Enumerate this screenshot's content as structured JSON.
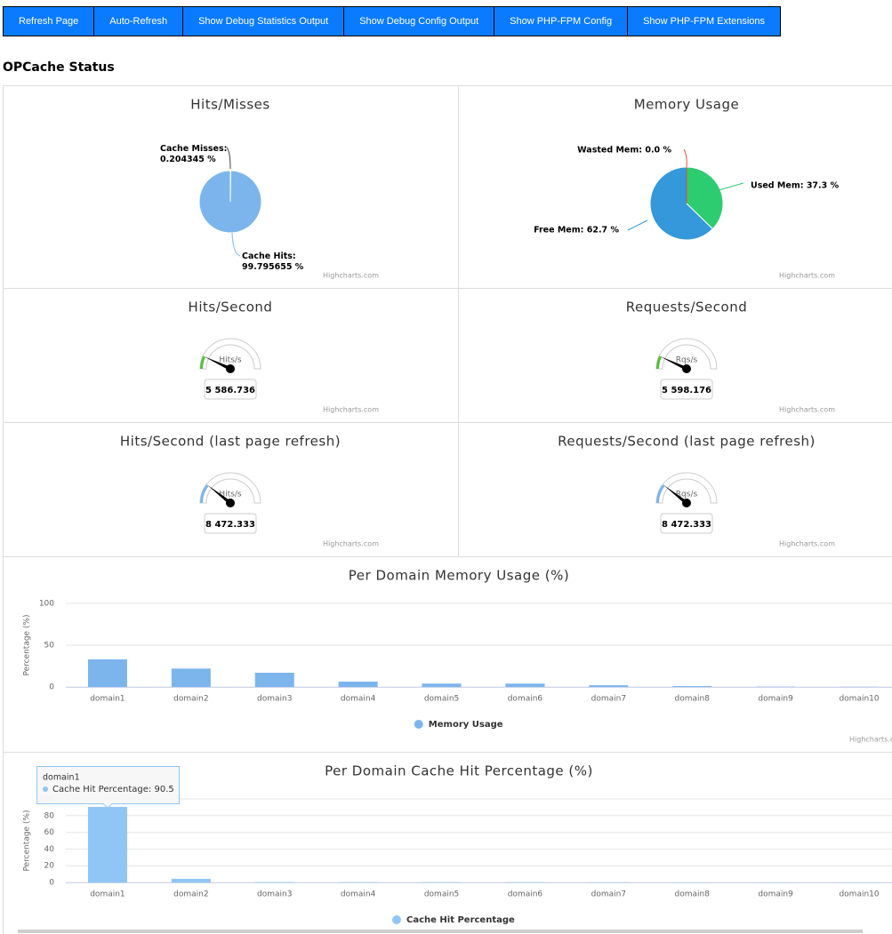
{
  "buttons": [
    "Refresh Page",
    "Auto-Refresh",
    "Show Debug Statistics Output",
    "Show Debug Config Output",
    "Show PHP-FPM Config",
    "Show PHP-FPM Extensions"
  ],
  "heading": "OPCache Status",
  "chart_data": [
    {
      "type": "pie",
      "title": "Hits/Misses",
      "credits": "Highcharts.com",
      "categories": [
        "Cache Misses",
        "Cache Hits"
      ],
      "values": [
        0.204345,
        99.795655
      ],
      "value_labels": [
        "Cache Misses: 0.204345 %",
        "Cache Hits: 99.795655 %"
      ],
      "colors": [
        "#434348",
        "#7cb5ec"
      ]
    },
    {
      "type": "pie",
      "title": "Memory Usage",
      "credits": "Highcharts.com",
      "categories": [
        "Used Mem",
        "Free Mem",
        "Wasted Mem"
      ],
      "values": [
        37.3,
        62.7,
        0
      ],
      "value_labels": [
        "Used Mem: 37.3 %",
        "Free Mem: 62.7 %",
        "Wasted Mem: 0.0 %"
      ],
      "colors": [
        "#2ecc71",
        "#3498db",
        "#e74c3c"
      ]
    },
    {
      "type": "gauge",
      "title": "Hits/Second",
      "credits": "Highcharts.com",
      "unit": "Hits/s",
      "value": 5586.736,
      "value_label": "5 586.736",
      "ylim": [
        0,
        40000
      ],
      "color": "#55bf3b"
    },
    {
      "type": "gauge",
      "title": "Requests/Second",
      "credits": "Highcharts.com",
      "unit": "Rqs/s",
      "value": 5598.176,
      "value_label": "5 598.176",
      "ylim": [
        0,
        40000
      ],
      "color": "#55bf3b"
    },
    {
      "type": "gauge",
      "title": "Hits/Second (last page refresh)",
      "credits": "Highcharts.com",
      "unit": "Hits/s",
      "value": 8472.333,
      "value_label": "8 472.333",
      "ylim": [
        0,
        40000
      ],
      "color": "#7cb5ec"
    },
    {
      "type": "gauge",
      "title": "Requests/Second (last page refresh)",
      "credits": "Highcharts.com",
      "unit": "Rqs/s",
      "value": 8472.333,
      "value_label": "8 472.333",
      "ylim": [
        0,
        40000
      ],
      "color": "#7cb5ec"
    },
    {
      "type": "bar",
      "title": "Per Domain Memory Usage (%)",
      "credits": "Highcharts.com",
      "y_label": "Percentage (%)",
      "categories": [
        "domain1",
        "domain2",
        "domain3",
        "domain4",
        "domain5",
        "domain6",
        "domain7",
        "domain8",
        "domain9",
        "domain10"
      ],
      "series": [
        {
          "name": "Memory Usage",
          "color": "#7cb5ec",
          "values": [
            33,
            22,
            17,
            6.4,
            4,
            4,
            2,
            1,
            0.3,
            0.2
          ]
        }
      ],
      "ylim": [
        0,
        100
      ],
      "yticks": [
        0,
        50,
        100
      ],
      "grid": true
    },
    {
      "type": "bar",
      "title": "Per Domain Cache Hit Percentage (%)",
      "y_label": "Percentage (%)",
      "categories": [
        "domain1",
        "domain2",
        "domain3",
        "domain4",
        "domain5",
        "domain6",
        "domain7",
        "domain8",
        "domain9",
        "domain10"
      ],
      "series": [
        {
          "name": "Cache Hit Percentage",
          "color": "#90c6f5",
          "values": [
            90.5,
            4.3,
            0.5,
            0.3,
            0.3,
            0.3,
            0.2,
            0.1,
            0.1,
            0.1
          ]
        }
      ],
      "ylim": [
        0,
        100
      ],
      "yticks": [
        0,
        20,
        40,
        60,
        80,
        100
      ],
      "grid": true,
      "tooltip": {
        "text": "Cache Hit Percentage: 90.5"
      }
    }
  ]
}
